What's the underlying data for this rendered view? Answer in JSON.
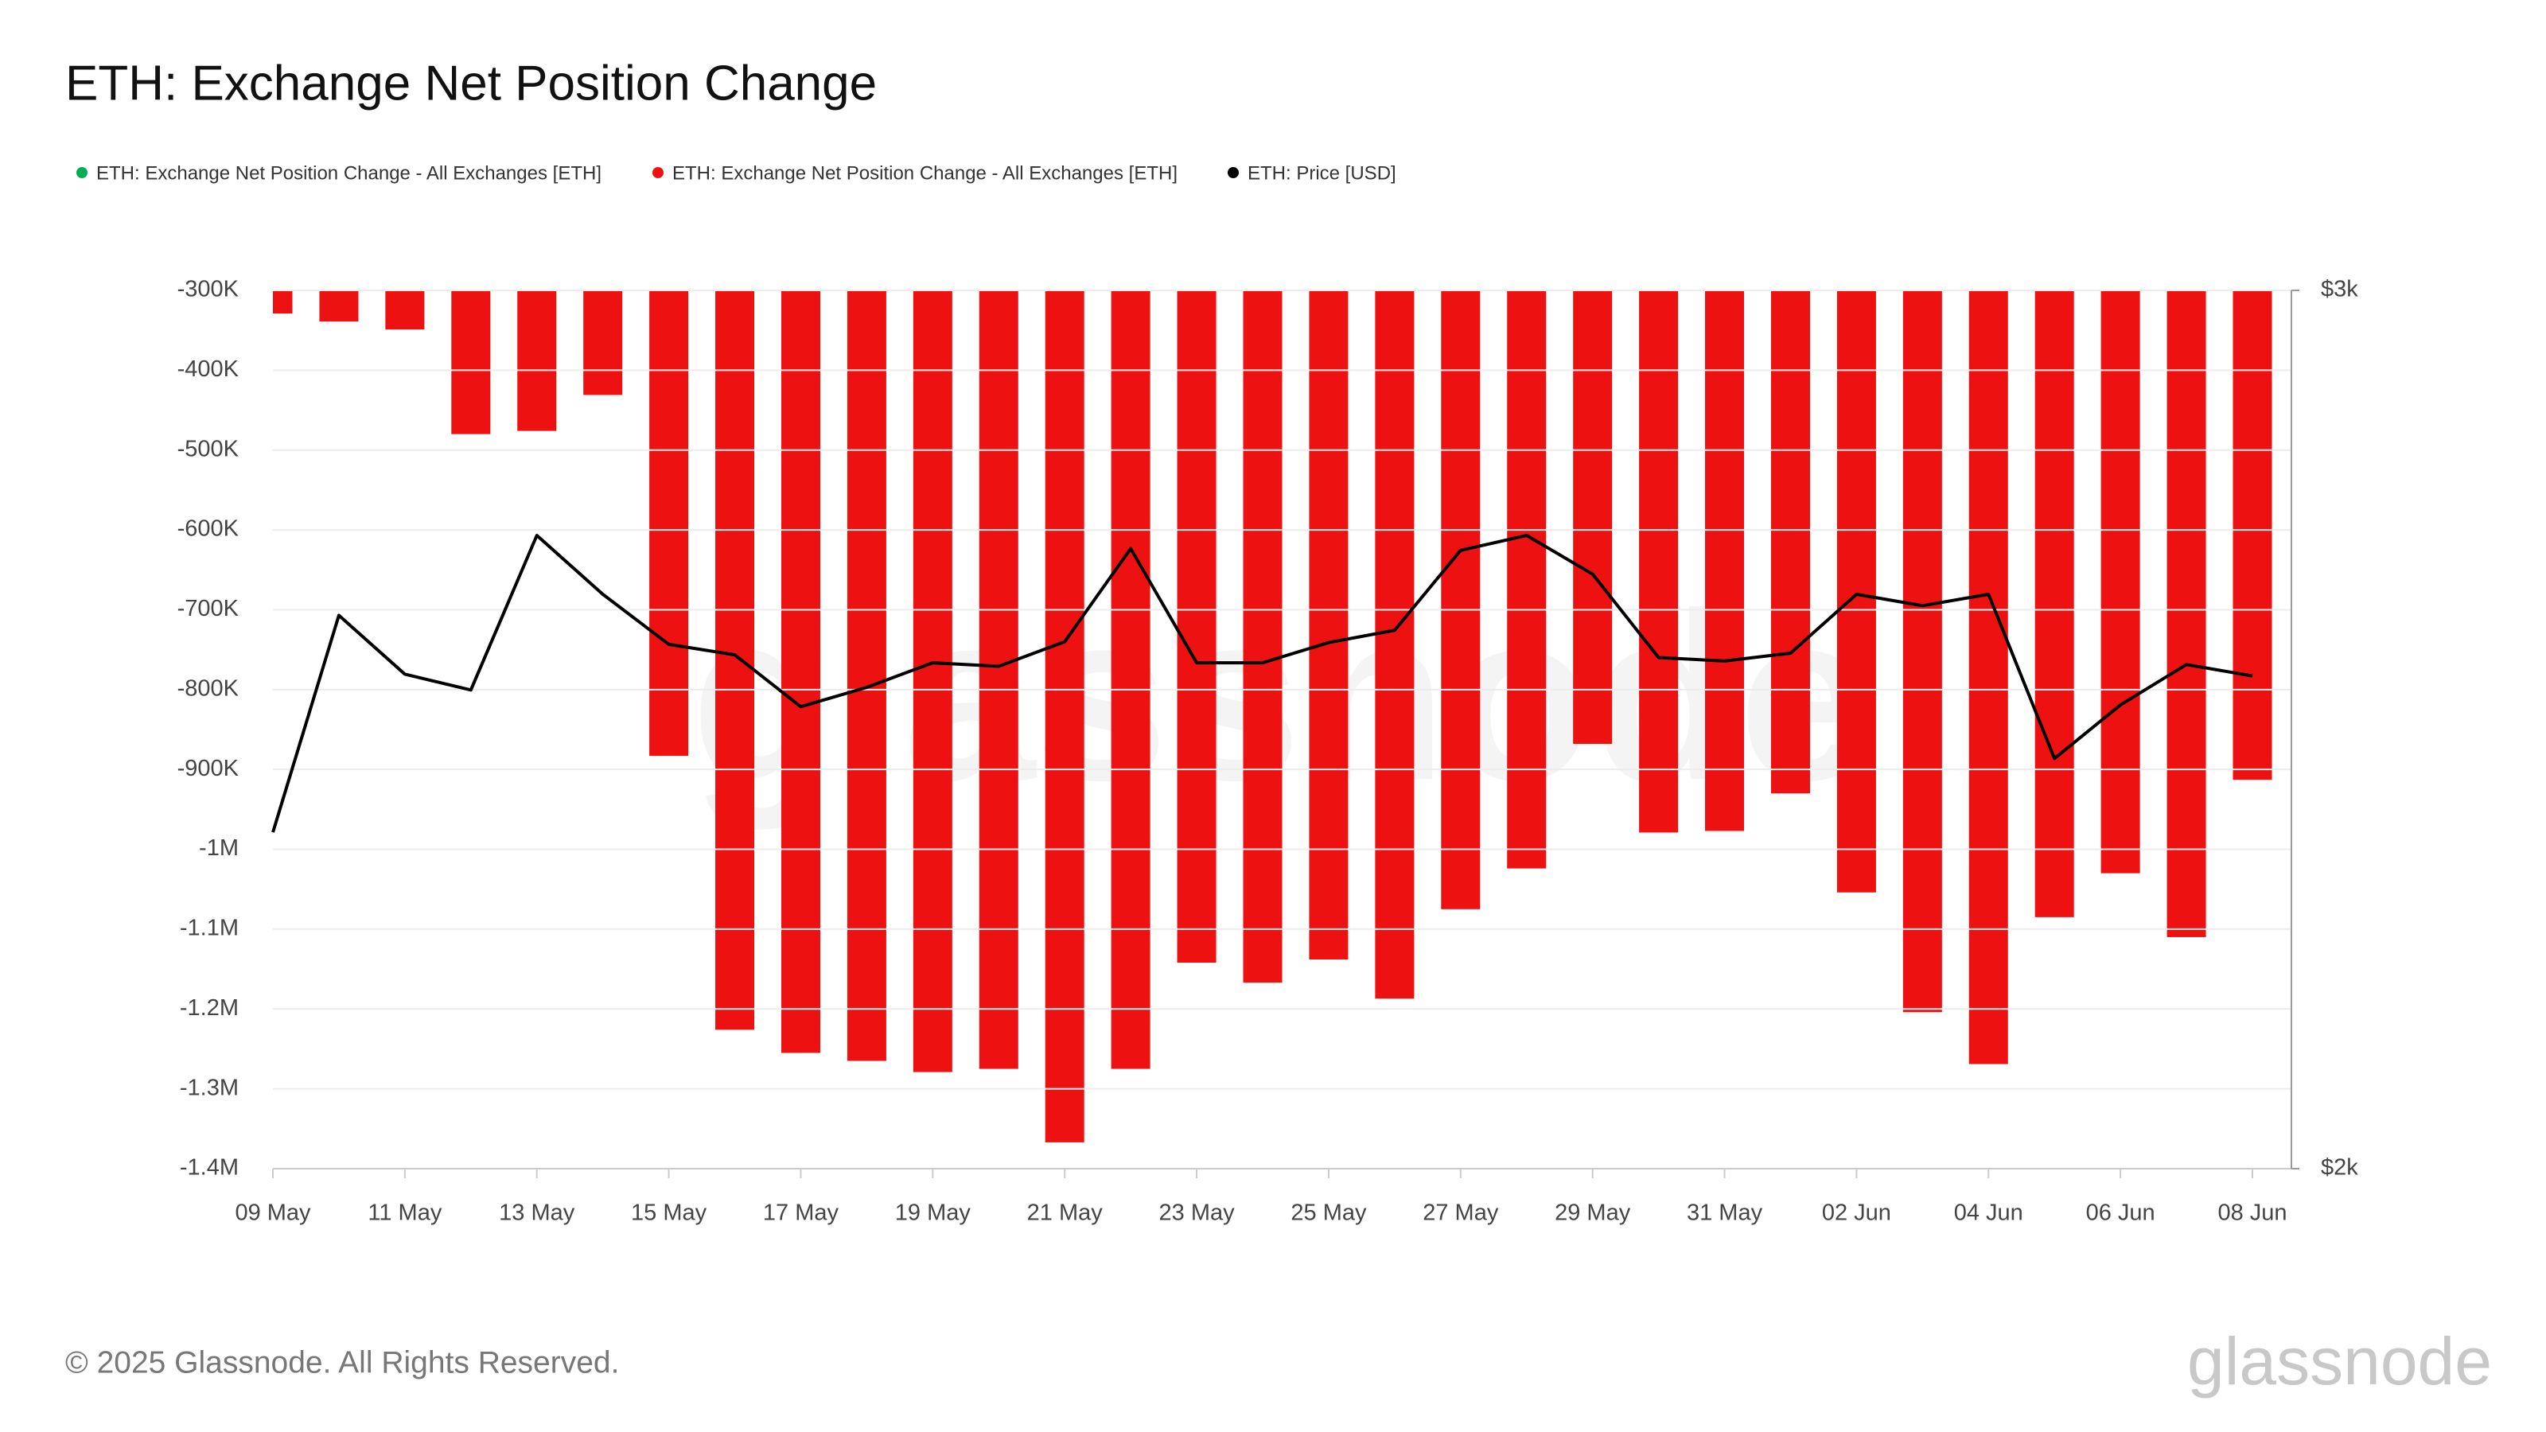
{
  "chart_data": {
    "type": "bar_line",
    "title": "ETH: Exchange Net Position Change",
    "footer": "© 2025 Glassnode. All Rights Reserved.",
    "watermark": "glassnode",
    "categories": [
      "09 May",
      null,
      "11 May",
      null,
      "13 May",
      null,
      "15 May",
      null,
      "17 May",
      null,
      "19 May",
      null,
      "21 May",
      null,
      "23 May",
      null,
      "25 May",
      null,
      "27 May",
      null,
      "29 May",
      null,
      "31 May",
      null,
      "02 Jun",
      null,
      "04 Jun",
      null,
      "06 Jun",
      null,
      "08 Jun"
    ],
    "series": [
      {
        "name": "ETH: Exchange Net Position Change - All Exchanges [ETH]",
        "color": "#00b050",
        "type": "bar",
        "values": [
          null,
          null,
          null,
          null,
          null,
          null,
          null,
          null,
          null,
          null,
          null,
          null,
          null,
          null,
          null,
          null,
          null,
          null,
          null,
          null,
          null,
          null,
          null,
          null,
          null,
          null,
          null,
          null,
          null,
          null,
          null
        ]
      },
      {
        "name": "ETH: Exchange Net Position Change - All Exchanges [ETH]",
        "color": "#ee1111",
        "type": "bar",
        "values": [
          -329000,
          -339000,
          -349000,
          -480000,
          -476000,
          -431000,
          -883000,
          -1226000,
          -1255000,
          -1265000,
          -1279000,
          -1275000,
          -1367000,
          -1275000,
          -1142000,
          -1167000,
          -1138000,
          -1187000,
          -1075000,
          -1024000,
          -868000,
          -979000,
          -977000,
          -930000,
          -1054000,
          -1204000,
          -1269000,
          -1085000,
          -1030000,
          -1110000,
          -913000
        ]
      },
      {
        "name": "ETH: Price [USD]",
        "color": "#000000",
        "type": "line",
        "axis": "y2",
        "values": [
          2383,
          2630,
          2563,
          2545,
          2721,
          2654,
          2597,
          2585,
          2526,
          2548,
          2576,
          2572,
          2600,
          2706,
          2576,
          2576,
          2599,
          2613,
          2704,
          2721,
          2677,
          2582,
          2578,
          2587,
          2654,
          2641,
          2654,
          2467,
          2528,
          2574,
          2561
        ]
      }
    ],
    "ylim": [
      -1400000,
      -300000
    ],
    "yticks": [
      {
        "value": -300000,
        "label": "-300K"
      },
      {
        "value": -400000,
        "label": "-400K"
      },
      {
        "value": -500000,
        "label": "-500K"
      },
      {
        "value": -600000,
        "label": "-600K"
      },
      {
        "value": -700000,
        "label": "-700K"
      },
      {
        "value": -800000,
        "label": "-800K"
      },
      {
        "value": -900000,
        "label": "-900K"
      },
      {
        "value": -1000000,
        "label": "-1M"
      },
      {
        "value": -1100000,
        "label": "-1.1M"
      },
      {
        "value": -1200000,
        "label": "-1.2M"
      },
      {
        "value": -1300000,
        "label": "-1.3M"
      },
      {
        "value": -1400000,
        "label": "-1.4M"
      }
    ],
    "y2lim": [
      2000,
      3000
    ],
    "y2ticks": [
      {
        "value": 2000,
        "label": "$2k"
      },
      {
        "value": 3000,
        "label": "$3k"
      }
    ],
    "grid": true
  }
}
